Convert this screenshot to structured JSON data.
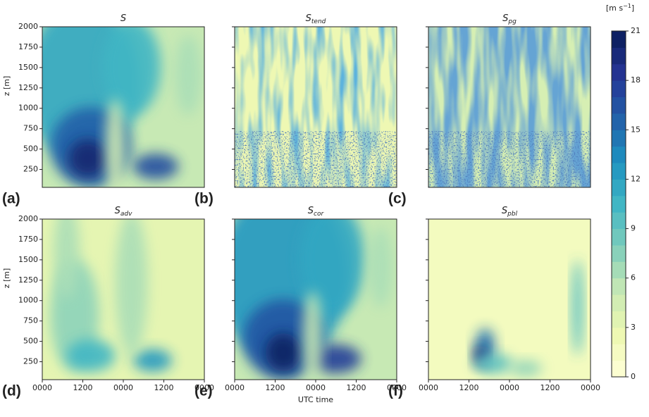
{
  "chart_data": {
    "type": "heatmap-grid",
    "panels": [
      {
        "title": "S",
        "label": "(a)"
      },
      {
        "title": "S",
        "subscript": "tend",
        "label": "(b)"
      },
      {
        "title": "S",
        "subscript": "pg",
        "label": "(c)"
      },
      {
        "title": "S",
        "subscript": "adv",
        "label": "(d)"
      },
      {
        "title": "S",
        "subscript": "cor",
        "label": "(e)"
      },
      {
        "title": "S",
        "subscript": "pbl",
        "label": "(f)"
      }
    ],
    "ylabel": "z [m]",
    "ylim": [
      30,
      2000
    ],
    "yticks": [
      250,
      500,
      750,
      1000,
      1250,
      1500,
      1750,
      2000
    ],
    "xlabel": "UTC time",
    "xlim": [
      0,
      48
    ],
    "xticks": [
      {
        "value": 0,
        "label": "0000"
      },
      {
        "value": 12,
        "label": "1200"
      },
      {
        "value": 24,
        "label": "0000"
      },
      {
        "value": 36,
        "label": "1200"
      },
      {
        "value": 48,
        "label": "0000"
      }
    ],
    "colorbar": {
      "label_base": "[m s",
      "label_sup": "−1",
      "label_end": "]",
      "clim": [
        0,
        21
      ],
      "ticks": [
        0,
        3,
        6,
        9,
        12,
        15,
        18,
        21
      ],
      "level_step": 1,
      "colors": [
        "#ffffd9",
        "#edf8b1",
        "#c7e9b4",
        "#7fcdbb",
        "#41b6c4",
        "#1d91c0",
        "#225ea8",
        "#253494",
        "#081d58"
      ]
    }
  }
}
